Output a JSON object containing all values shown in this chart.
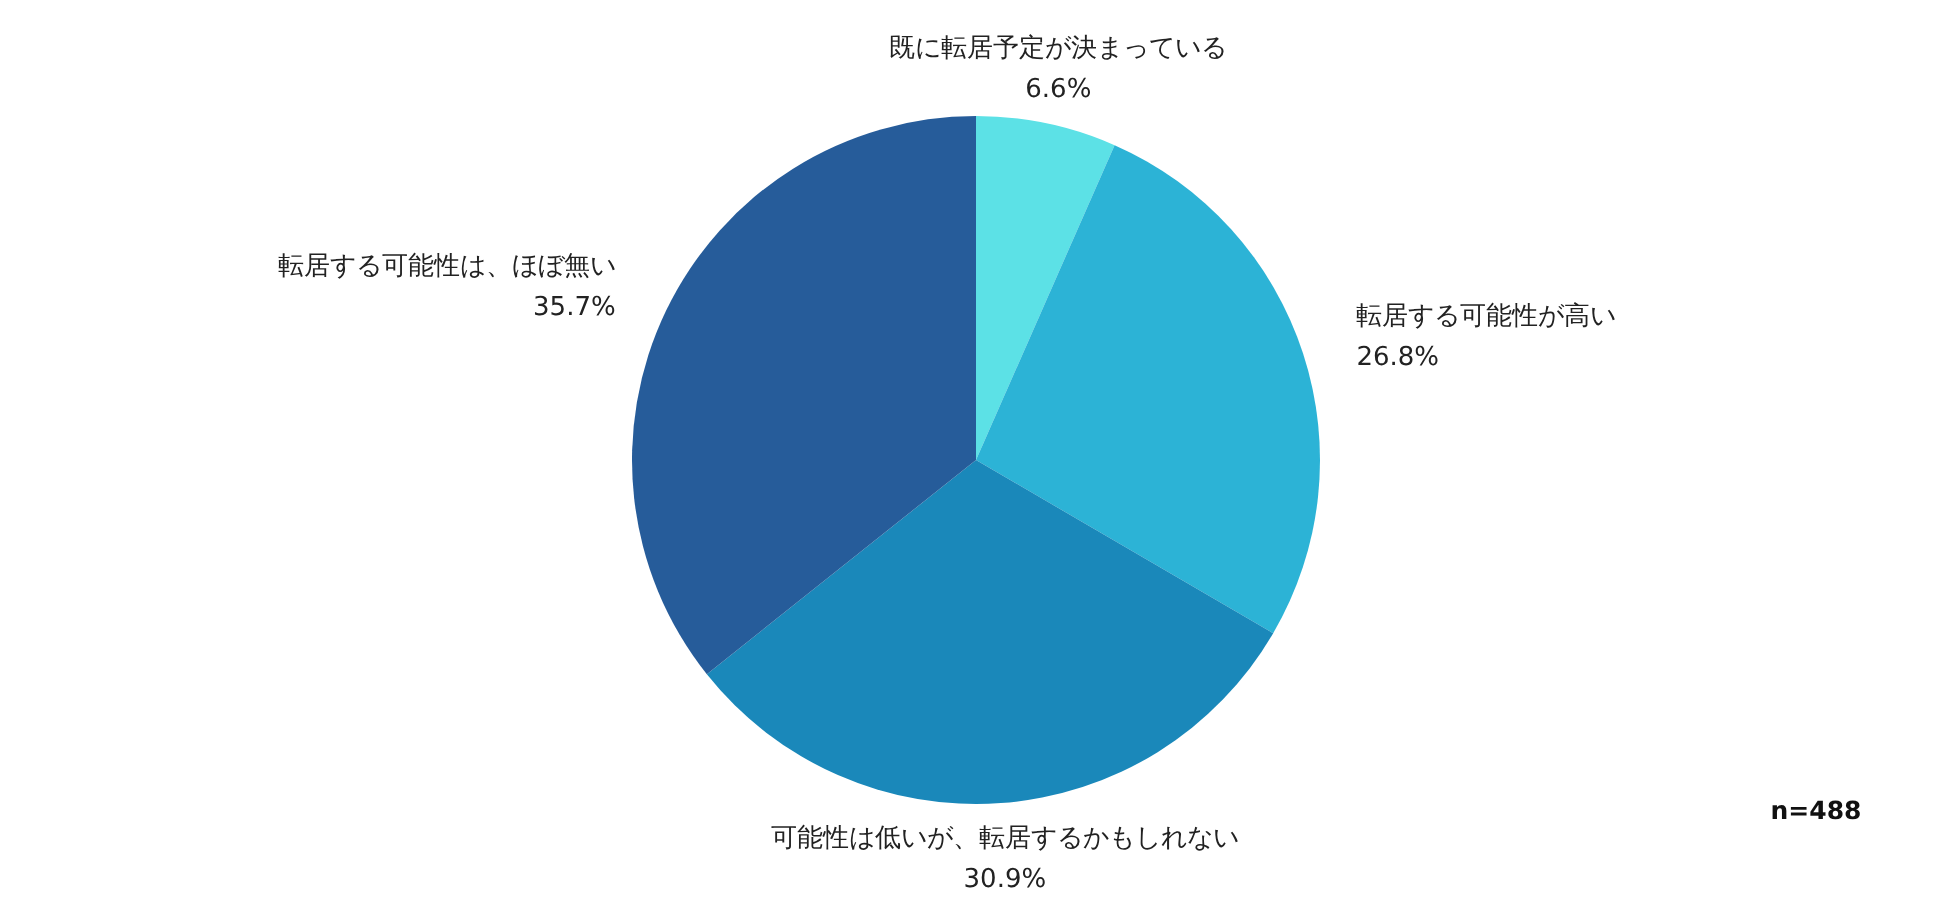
{
  "chart_data": {
    "type": "pie",
    "categories": [
      "既に転居予定が決まっている",
      "転居する可能性が高い",
      "可能性は低いが、転居するかもしれない",
      "転居する可能性は、ほぼ無い"
    ],
    "values": [
      6.6,
      26.8,
      30.9,
      35.7
    ],
    "colors": [
      "#5ce1e6",
      "#2cb3d6",
      "#1a88ba",
      "#265c9a"
    ],
    "value_labels": [
      "6.6%",
      "26.8%",
      "30.9%",
      "35.7%"
    ],
    "annotations": [
      "n=488"
    ]
  }
}
